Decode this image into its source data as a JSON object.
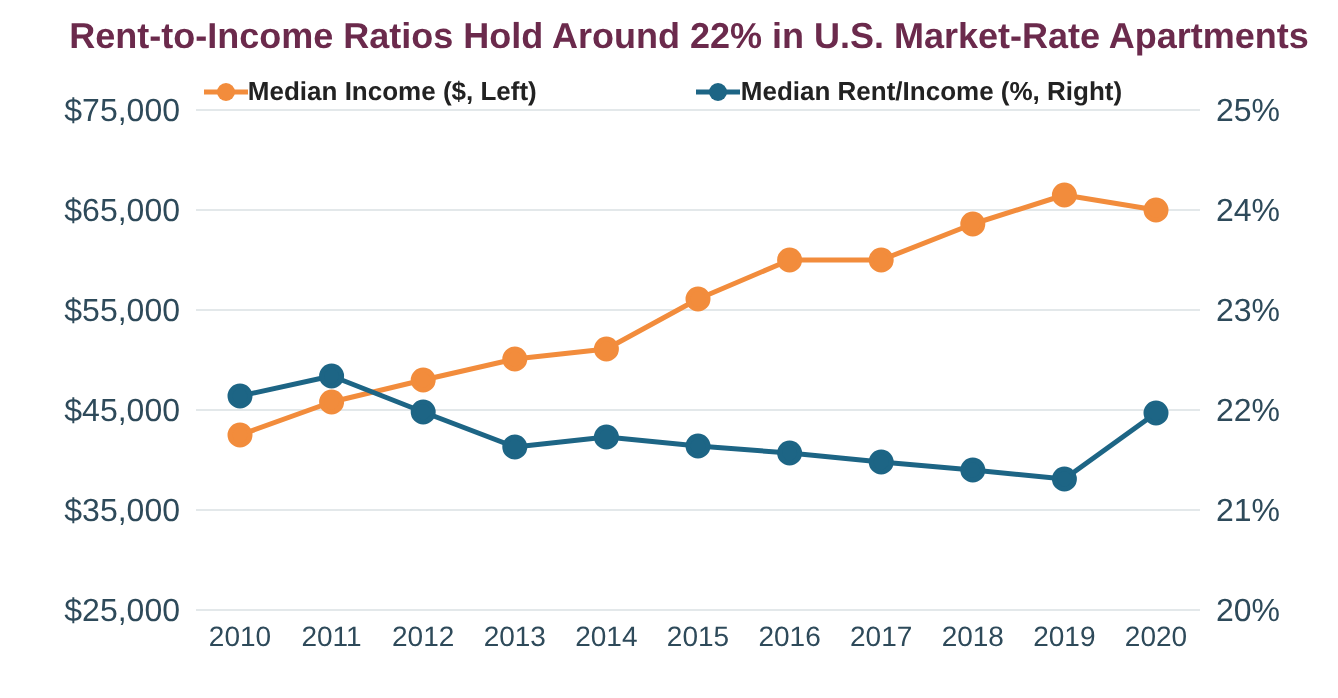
{
  "chart_data": {
    "type": "line",
    "title": "Rent-to-Income Ratios Hold Around 22% in U.S. Market-Rate Apartments",
    "categories": [
      "2010",
      "2011",
      "2012",
      "2013",
      "2014",
      "2015",
      "2016",
      "2017",
      "2018",
      "2019",
      "2020"
    ],
    "series": [
      {
        "name": "Median Income ($, Left)",
        "color": "#f28c3c",
        "values": [
          42500,
          45800,
          48000,
          50100,
          51100,
          56100,
          60000,
          60000,
          63600,
          66500,
          65000
        ]
      },
      {
        "name": "Median Rent/Income (%, Right)",
        "color": "#1d6585",
        "axis": "y2",
        "values": [
          22.14,
          22.34,
          21.98,
          21.63,
          21.73,
          21.64,
          21.57,
          21.48,
          21.4,
          21.31,
          21.97
        ]
      }
    ],
    "ylim": [
      25000,
      75000
    ],
    "yticks": [
      {
        "value": 25000,
        "label": "$25,000"
      },
      {
        "value": 35000,
        "label": "$35,000"
      },
      {
        "value": 45000,
        "label": "$45,000"
      },
      {
        "value": 55000,
        "label": "$55,000"
      },
      {
        "value": 65000,
        "label": "$65,000"
      },
      {
        "value": 75000,
        "label": "$75,000"
      }
    ],
    "y2lim": [
      20,
      25
    ],
    "y2ticks": [
      {
        "value": 20,
        "label": "20%"
      },
      {
        "value": 21,
        "label": "21%"
      },
      {
        "value": 22,
        "label": "22%"
      },
      {
        "value": 23,
        "label": "23%"
      },
      {
        "value": 24,
        "label": "24%"
      },
      {
        "value": 25,
        "label": "25%"
      }
    ],
    "grid": "y",
    "legend": "top",
    "marker": "circle",
    "line_style": "solid"
  }
}
